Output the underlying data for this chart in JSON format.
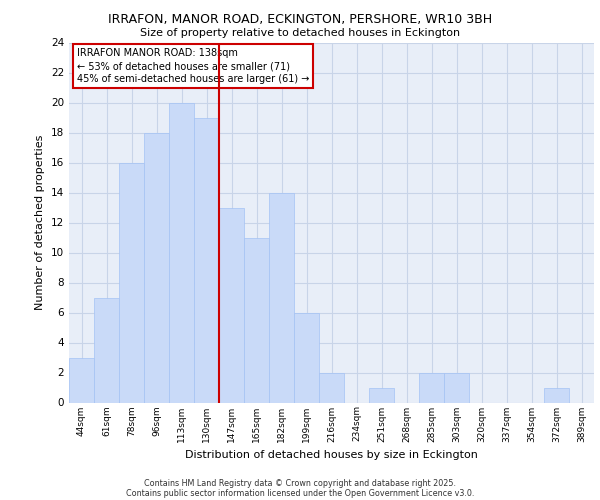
{
  "title1": "IRRAFON, MANOR ROAD, ECKINGTON, PERSHORE, WR10 3BH",
  "title2": "Size of property relative to detached houses in Eckington",
  "xlabel": "Distribution of detached houses by size in Eckington",
  "ylabel": "Number of detached properties",
  "categories": [
    "44sqm",
    "61sqm",
    "78sqm",
    "96sqm",
    "113sqm",
    "130sqm",
    "147sqm",
    "165sqm",
    "182sqm",
    "199sqm",
    "216sqm",
    "234sqm",
    "251sqm",
    "268sqm",
    "285sqm",
    "303sqm",
    "320sqm",
    "337sqm",
    "354sqm",
    "372sqm",
    "389sqm"
  ],
  "values": [
    3,
    7,
    16,
    18,
    20,
    19,
    13,
    11,
    14,
    6,
    2,
    0,
    1,
    0,
    2,
    2,
    0,
    0,
    0,
    1,
    0
  ],
  "bar_color": "#c9daf8",
  "bar_edge_color": "#a4c2f4",
  "grid_color": "#c8d4e8",
  "background_color": "#e8eef8",
  "red_line_index": 5,
  "annotation_line1": "IRRAFON MANOR ROAD: 138sqm",
  "annotation_line2": "← 53% of detached houses are smaller (71)",
  "annotation_line3": "45% of semi-detached houses are larger (61) →",
  "annotation_box_color": "#ffffff",
  "annotation_box_edge": "#cc0000",
  "ylim": [
    0,
    24
  ],
  "yticks": [
    0,
    2,
    4,
    6,
    8,
    10,
    12,
    14,
    16,
    18,
    20,
    22,
    24
  ],
  "footer1": "Contains HM Land Registry data © Crown copyright and database right 2025.",
  "footer2": "Contains public sector information licensed under the Open Government Licence v3.0.",
  "red_line_color": "#cc0000",
  "fig_bg": "#ffffff"
}
